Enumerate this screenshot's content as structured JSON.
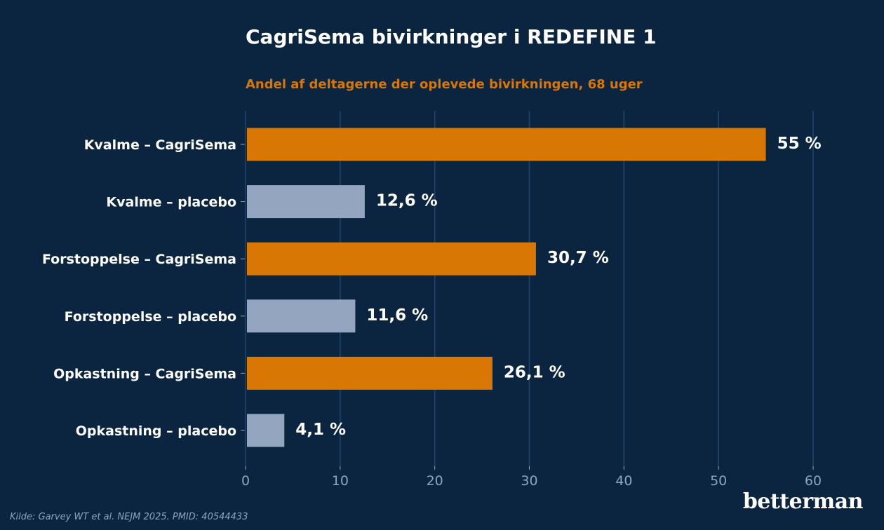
{
  "title": "CagriSema bivirkninger i REDEFINE 1",
  "subtitle": "Andel af deltagerne der oplevede bivirkningen, 68 uger",
  "source": "Kilde: Garvey WT et al. NEJM 2025. PMID: 40544433",
  "brand": "betterman",
  "colors": {
    "background": "#0b2541",
    "cagrisema": "#d97704",
    "placebo": "#93a5bf",
    "grid": "#23456b",
    "tick_text": "#8fa3bb",
    "label_text": "#ffffff"
  },
  "chart_data": {
    "type": "bar",
    "orientation": "horizontal",
    "title": "CagriSema bivirkninger i REDEFINE 1",
    "subtitle": "Andel af deltagerne der oplevede bivirkningen, 68 uger",
    "categories": [
      "Kvalme – CagriSema",
      "Kvalme – placebo",
      "Forstoppelse – CagriSema",
      "Forstoppelse – placebo",
      "Opkastning – CagriSema",
      "Opkastning – placebo"
    ],
    "values": [
      55,
      12.6,
      30.7,
      11.6,
      26.1,
      4.1
    ],
    "value_labels": [
      "55 %",
      "12,6 %",
      "30,7 %",
      "11,6 %",
      "26,1 %",
      "4,1 %"
    ],
    "groups": [
      "cagrisema",
      "placebo",
      "cagrisema",
      "placebo",
      "cagrisema",
      "placebo"
    ],
    "xlim": [
      0,
      60
    ],
    "xticks": [
      0,
      10,
      20,
      30,
      40,
      50,
      60
    ],
    "grid": "vertical",
    "xlabel": "",
    "ylabel": ""
  }
}
